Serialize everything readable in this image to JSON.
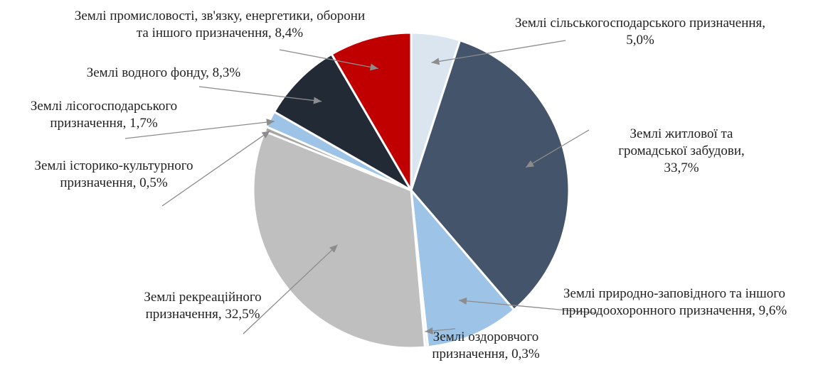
{
  "chart_data": {
    "type": "pie",
    "slices": [
      {
        "label_lines": [
          "Землі сільськогосподарського призначення,",
          "5,0%"
        ],
        "value": 5.0,
        "color": "#dae5f0"
      },
      {
        "label_lines": [
          "Землі житлової та",
          "громадської забудови,",
          "33,7%"
        ],
        "value": 33.7,
        "color": "#44546a"
      },
      {
        "label_lines": [
          "Землі природно-заповідного та іншого",
          "природоохоронного призначення, 9,6%"
        ],
        "value": 9.6,
        "color": "#9dc3e6"
      },
      {
        "label_lines": [
          "Землі оздоровчого",
          "призначення, 0,3%"
        ],
        "value": 0.3,
        "color": "#ededed"
      },
      {
        "label_lines": [
          "Землі рекреаційного",
          "призначення, 32,5%"
        ],
        "value": 32.5,
        "color": "#bfbfbf"
      },
      {
        "label_lines": [
          "Землі історико-культурного",
          "призначення, 0,5%"
        ],
        "value": 0.5,
        "color": "#a6a6a6"
      },
      {
        "label_lines": [
          "Землі лісогосподарського",
          "призначення, 1,7%"
        ],
        "value": 1.7,
        "color": "#9dc3e6"
      },
      {
        "label_lines": [
          "Землі водного фонду, 8,3%"
        ],
        "value": 8.3,
        "color": "#222a35"
      },
      {
        "label_lines": [
          "Землі промисловості, зв'язку, енергетики, оборони",
          "та іншого призначення, 8,4%"
        ],
        "value": 8.4,
        "color": "#c00000"
      }
    ]
  }
}
